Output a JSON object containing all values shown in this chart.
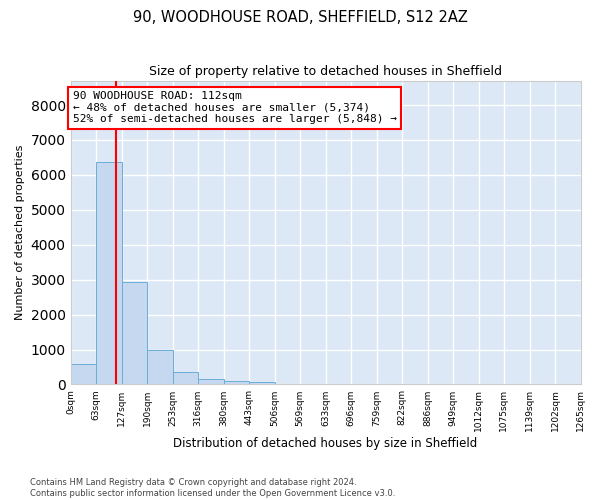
{
  "title": "90, WOODHOUSE ROAD, SHEFFIELD, S12 2AZ",
  "subtitle": "Size of property relative to detached houses in Sheffield",
  "xlabel": "Distribution of detached houses by size in Sheffield",
  "ylabel": "Number of detached properties",
  "bar_color": "#c5d8f0",
  "bar_edgecolor": "#6aaed6",
  "background_color": "#dce8f5",
  "grid_color": "white",
  "annotation_line_color": "red",
  "property_sqm": 112,
  "bin_edges": [
    0,
    63,
    127,
    190,
    253,
    316,
    380,
    443,
    506,
    569,
    633,
    696,
    759,
    822,
    886,
    949,
    1012,
    1075,
    1139,
    1202,
    1265
  ],
  "bar_heights": [
    580,
    6380,
    2920,
    980,
    360,
    170,
    100,
    70,
    0,
    0,
    0,
    0,
    0,
    0,
    0,
    0,
    0,
    0,
    0,
    0
  ],
  "ylim": [
    0,
    8700
  ],
  "yticks": [
    0,
    1000,
    2000,
    3000,
    4000,
    5000,
    6000,
    7000,
    8000
  ],
  "annotation_text_line1": "90 WOODHOUSE ROAD: 112sqm",
  "annotation_text_line2": "← 48% of detached houses are smaller (5,374)",
  "annotation_text_line3": "52% of semi-detached houses are larger (5,848) →",
  "annotation_box_color": "white",
  "annotation_box_edgecolor": "red",
  "footer_text": "Contains HM Land Registry data © Crown copyright and database right 2024.\nContains public sector information licensed under the Open Government Licence v3.0.",
  "tick_labels": [
    "0sqm",
    "63sqm",
    "127sqm",
    "190sqm",
    "253sqm",
    "316sqm",
    "380sqm",
    "443sqm",
    "506sqm",
    "569sqm",
    "633sqm",
    "696sqm",
    "759sqm",
    "822sqm",
    "886sqm",
    "949sqm",
    "1012sqm",
    "1075sqm",
    "1139sqm",
    "1202sqm",
    "1265sqm"
  ]
}
